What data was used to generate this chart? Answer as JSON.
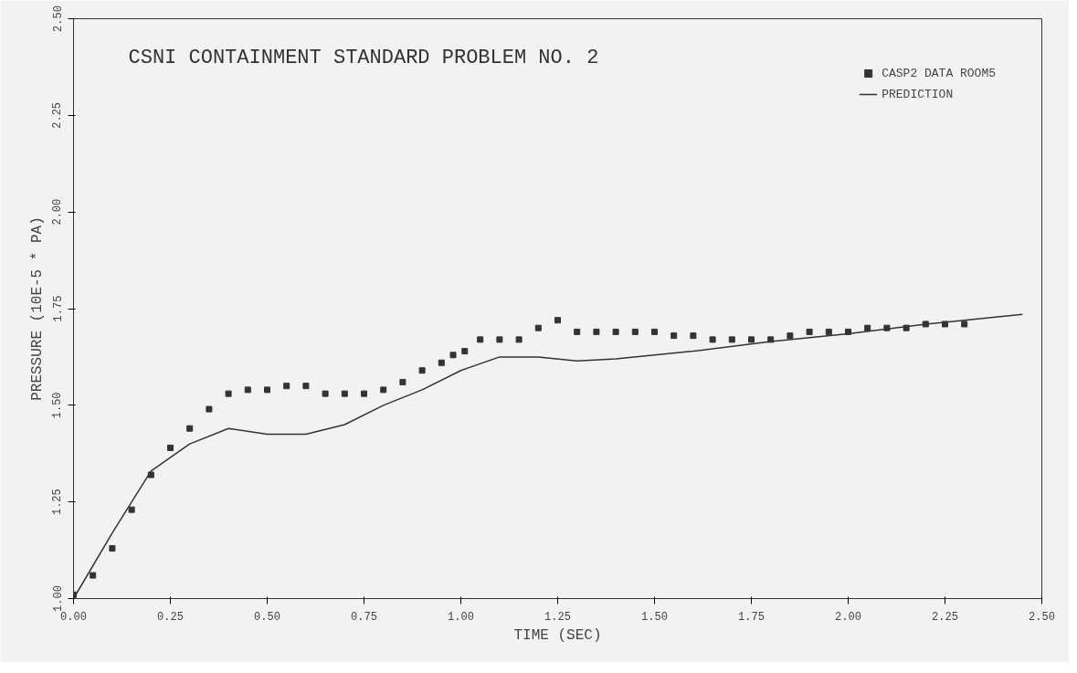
{
  "chart_data": {
    "type": "scatter",
    "title": "CSNI CONTAINMENT STANDARD PROBLEM NO. 2",
    "xlabel": "TIME (SEC)",
    "ylabel": "PRESSURE (10E-5 * PA)",
    "xlim": [
      0,
      2.5
    ],
    "ylim": [
      1.0,
      2.5
    ],
    "xticks": [
      {
        "value": 0,
        "label": "0.00"
      },
      {
        "value": 0.25,
        "label": "0.25"
      },
      {
        "value": 0.5,
        "label": "0.50"
      },
      {
        "value": 0.75,
        "label": "0.75"
      },
      {
        "value": 1,
        "label": "1.00"
      },
      {
        "value": 1.25,
        "label": "1.25"
      },
      {
        "value": 1.5,
        "label": "1.50"
      },
      {
        "value": 1.75,
        "label": "1.75"
      },
      {
        "value": 2,
        "label": "2.00"
      },
      {
        "value": 2.25,
        "label": "2.25"
      },
      {
        "value": 2.5,
        "label": "2.50"
      }
    ],
    "yticks": [
      {
        "value": 1,
        "label": "1.00"
      },
      {
        "value": 1.25,
        "label": "1.25"
      },
      {
        "value": 1.5,
        "label": "1.50"
      },
      {
        "value": 1.75,
        "label": "1.75"
      },
      {
        "value": 2,
        "label": "2.00"
      },
      {
        "value": 2.25,
        "label": "2.25"
      },
      {
        "value": 2.5,
        "label": "2.50"
      }
    ],
    "grid": false,
    "legend": "top right",
    "series": [
      {
        "name": "CASP2 DATA ROOM5",
        "marker": "square",
        "color": "#333333",
        "x": [
          0,
          0.05,
          0.1,
          0.15,
          0.2,
          0.25,
          0.3,
          0.35,
          0.4,
          0.45,
          0.5,
          0.55,
          0.6,
          0.65,
          0.7,
          0.75,
          0.8,
          0.85,
          0.9,
          0.95,
          0.98,
          1.01,
          1.05,
          1.1,
          1.15,
          1.2,
          1.25,
          1.3,
          1.35,
          1.4,
          1.45,
          1.5,
          1.55,
          1.6,
          1.65,
          1.7,
          1.75,
          1.8,
          1.85,
          1.9,
          1.95,
          2.0,
          2.05,
          2.1,
          2.15,
          2.2,
          2.25,
          2.3
        ],
        "values": [
          1.01,
          1.06,
          1.13,
          1.23,
          1.32,
          1.39,
          1.44,
          1.49,
          1.53,
          1.54,
          1.54,
          1.55,
          1.55,
          1.53,
          1.53,
          1.53,
          1.54,
          1.56,
          1.59,
          1.61,
          1.63,
          1.64,
          1.67,
          1.67,
          1.67,
          1.7,
          1.72,
          1.69,
          1.69,
          1.69,
          1.69,
          1.69,
          1.68,
          1.68,
          1.67,
          1.67,
          1.67,
          1.67,
          1.68,
          1.69,
          1.69,
          1.69,
          1.7,
          1.7,
          1.7,
          1.71,
          1.71,
          1.71
        ]
      },
      {
        "name": "PREDICTION",
        "type": "line",
        "line_style": "solid",
        "color": "#333333",
        "x": [
          0,
          0.1,
          0.2,
          0.3,
          0.4,
          0.5,
          0.6,
          0.7,
          0.8,
          0.9,
          1.0,
          1.1,
          1.2,
          1.3,
          1.4,
          1.6,
          1.8,
          2.0,
          2.2,
          2.45
        ],
        "values": [
          1.0,
          1.17,
          1.33,
          1.4,
          1.44,
          1.425,
          1.425,
          1.45,
          1.5,
          1.54,
          1.59,
          1.625,
          1.625,
          1.615,
          1.62,
          1.64,
          1.665,
          1.685,
          1.71,
          1.735
        ]
      }
    ]
  }
}
